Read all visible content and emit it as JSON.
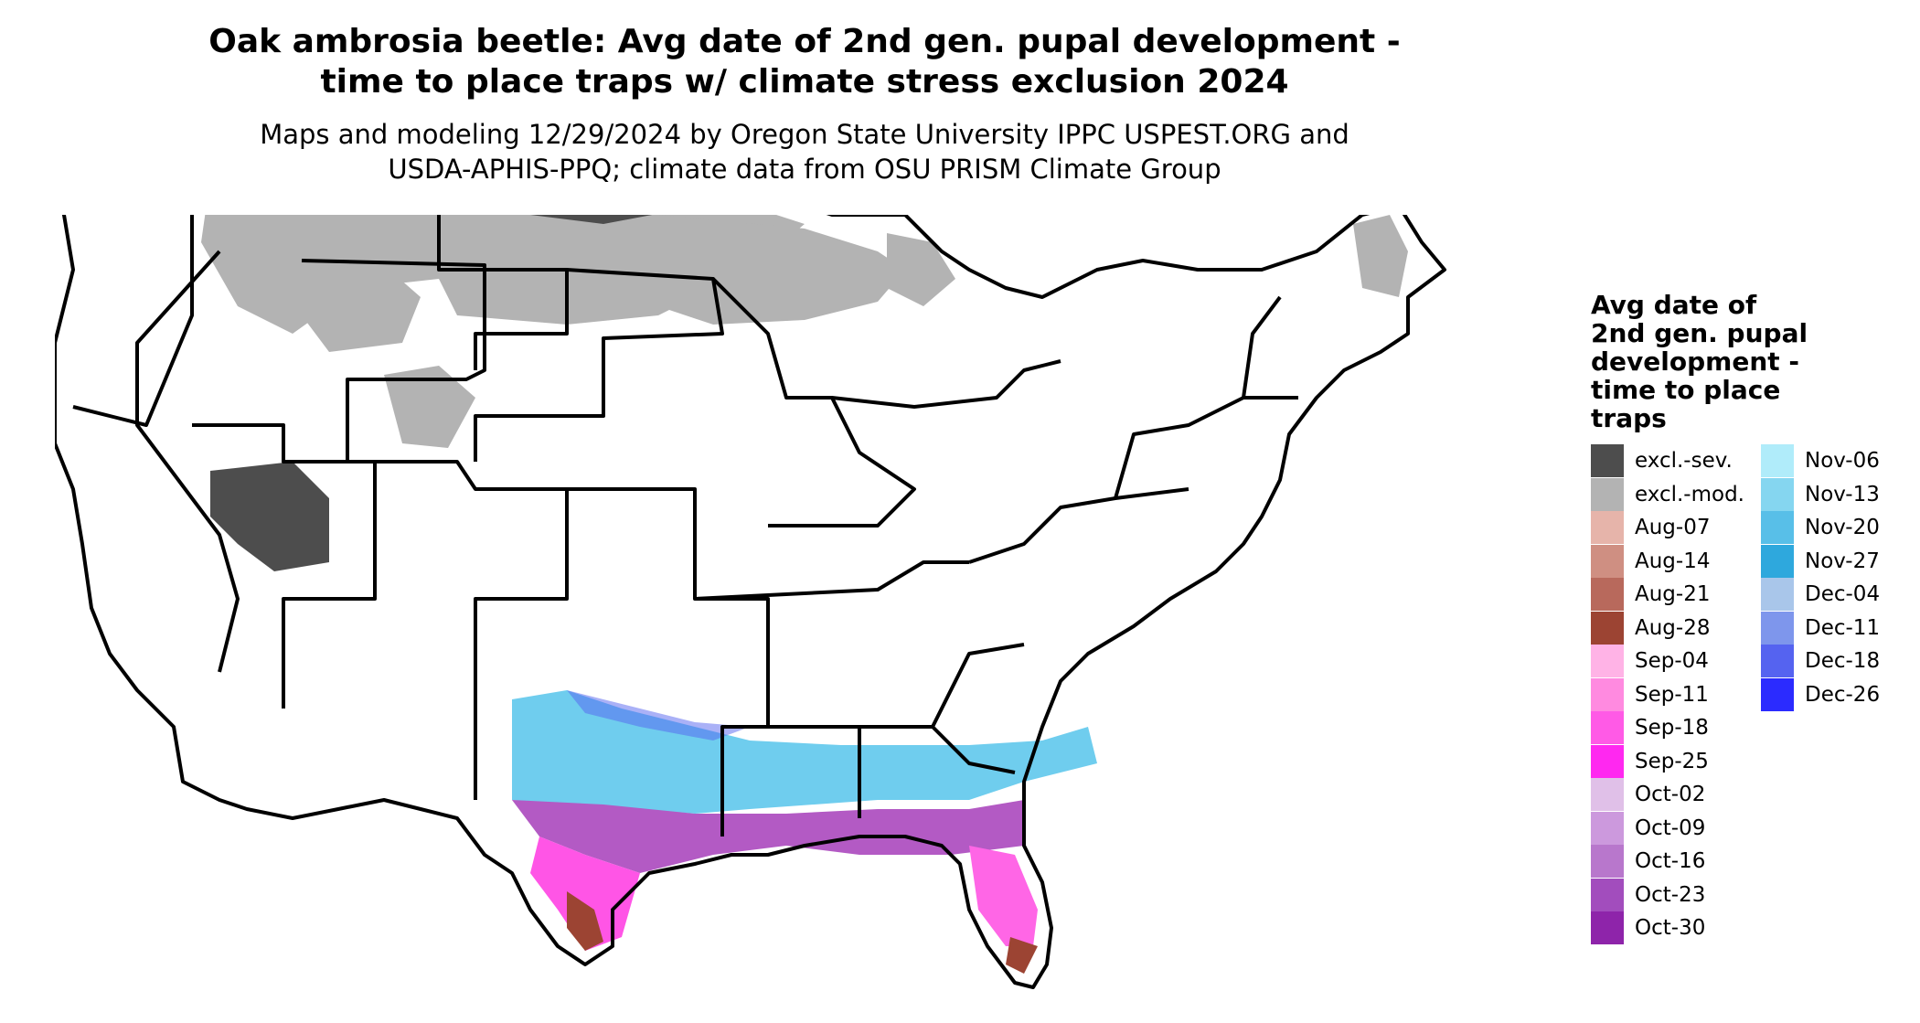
{
  "title_line1": "Oak ambrosia beetle: Avg date of 2nd gen. pupal development -",
  "title_line2": "time to place traps w/ climate stress exclusion 2024",
  "subtitle_line1": "Maps and modeling 12/29/2024 by Oregon State University IPPC USPEST.ORG and",
  "subtitle_line2": "USDA-APHIS-PPQ; climate data from OSU PRISM Climate Group",
  "legend": {
    "title_lines": [
      "Avg date of",
      "2nd gen. pupal",
      "development -",
      "time to place",
      "traps"
    ],
    "col1": [
      {
        "label": "excl.-sev.",
        "color": "#4d4d4d"
      },
      {
        "label": "excl.-mod.",
        "color": "#b3b3b3"
      },
      {
        "label": "Aug-07",
        "color": "#e6b4aa"
      },
      {
        "label": "Aug-14",
        "color": "#cf8f82"
      },
      {
        "label": "Aug-21",
        "color": "#b8695c"
      },
      {
        "label": "Aug-28",
        "color": "#9c4433"
      },
      {
        "label": "Sep-04",
        "color": "#ffb3e6"
      },
      {
        "label": "Sep-11",
        "color": "#ff8ae0"
      },
      {
        "label": "Sep-18",
        "color": "#ff5ae6"
      },
      {
        "label": "Sep-25",
        "color": "#ff28f0"
      },
      {
        "label": "Oct-02",
        "color": "#e0c0e8"
      },
      {
        "label": "Oct-09",
        "color": "#cc99dd"
      },
      {
        "label": "Oct-16",
        "color": "#b877cc"
      },
      {
        "label": "Oct-23",
        "color": "#a24dbd"
      },
      {
        "label": "Oct-30",
        "color": "#8e24aa"
      }
    ],
    "col2": [
      {
        "label": "Nov-06",
        "color": "#b0ecfa"
      },
      {
        "label": "Nov-13",
        "color": "#85d6f0"
      },
      {
        "label": "Nov-20",
        "color": "#58bfe8"
      },
      {
        "label": "Nov-27",
        "color": "#2ea8dd"
      },
      {
        "label": "Dec-04",
        "color": "#a9c6ea"
      },
      {
        "label": "Dec-11",
        "color": "#7e96ec"
      },
      {
        "label": "Dec-18",
        "color": "#5563f0"
      },
      {
        "label": "Dec-26",
        "color": "#2b2bff"
      }
    ]
  }
}
